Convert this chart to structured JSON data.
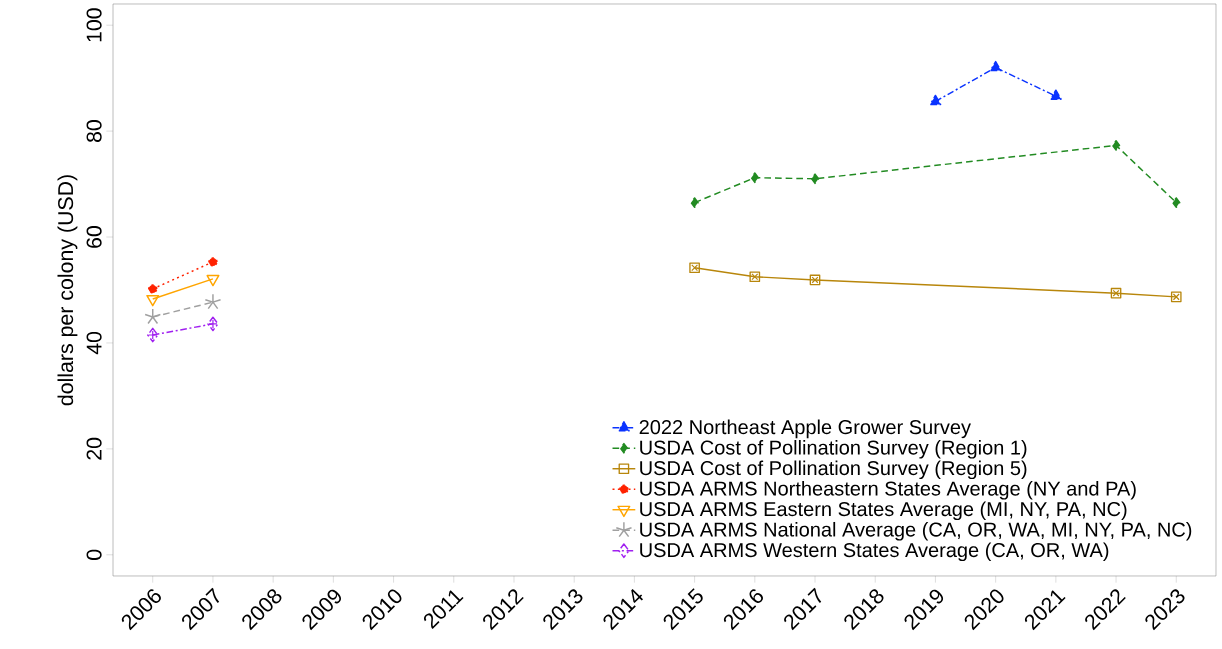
{
  "chart_data": {
    "type": "line",
    "ylabel": "dollars per colony (USD)",
    "xlim": [
      2005.34,
      2023.66
    ],
    "ylim": [
      -4,
      104
    ],
    "xticks": [
      2006,
      2007,
      2008,
      2009,
      2010,
      2011,
      2012,
      2013,
      2014,
      2015,
      2016,
      2017,
      2018,
      2019,
      2020,
      2021,
      2022,
      2023
    ],
    "yticks": [
      0,
      20,
      40,
      60,
      80,
      100
    ],
    "grid": false,
    "legend": "bottom right",
    "series": [
      {
        "name": "2022 Northeast Apple Grower Survey",
        "color": "#0a33ff",
        "marker": "triangle",
        "line_style": "dashdot",
        "x": [
          2019,
          2020,
          2021
        ],
        "values": [
          85.6,
          92.0,
          86.6
        ]
      },
      {
        "name": "USDA Cost of Pollination Survey (Region 1)",
        "color": "#228b22",
        "marker": "diamond",
        "line_style": "dashed",
        "x": [
          2015,
          2016,
          2017,
          2022,
          2023
        ],
        "values": [
          66.5,
          71.2,
          71.0,
          77.3,
          66.5
        ]
      },
      {
        "name": "USDA Cost of Pollination Survey (Region 5)",
        "color": "#b8860b",
        "marker": "square-x",
        "line_style": "solid",
        "x": [
          2015,
          2016,
          2017,
          2022,
          2023
        ],
        "values": [
          54.2,
          52.5,
          51.9,
          49.4,
          48.7
        ]
      },
      {
        "name": "USDA ARMS Northeastern States Average (NY and PA)",
        "color": "#ff2200",
        "marker": "circle",
        "line_style": "dotted",
        "x": [
          2006,
          2007
        ],
        "values": [
          50.2,
          55.3
        ]
      },
      {
        "name": "USDA ARMS Eastern States Average (MI, NY, PA, NC)",
        "color": "#ffa500",
        "marker": "triangle-down",
        "line_style": "solid",
        "x": [
          2006,
          2007
        ],
        "values": [
          48.3,
          52.1
        ]
      },
      {
        "name": "USDA ARMS National Average (CA, OR, WA, MI, NY, PA, NC)",
        "color": "#a0a0a0",
        "marker": "cross",
        "line_style": "dashed",
        "x": [
          2006,
          2007
        ],
        "values": [
          44.9,
          47.7
        ]
      },
      {
        "name": "USDA ARMS Western States Average (CA, OR, WA)",
        "color": "#a020f0",
        "marker": "diamond-plus",
        "line_style": "dashdot",
        "x": [
          2006,
          2007
        ],
        "values": [
          41.5,
          43.6
        ]
      }
    ]
  }
}
